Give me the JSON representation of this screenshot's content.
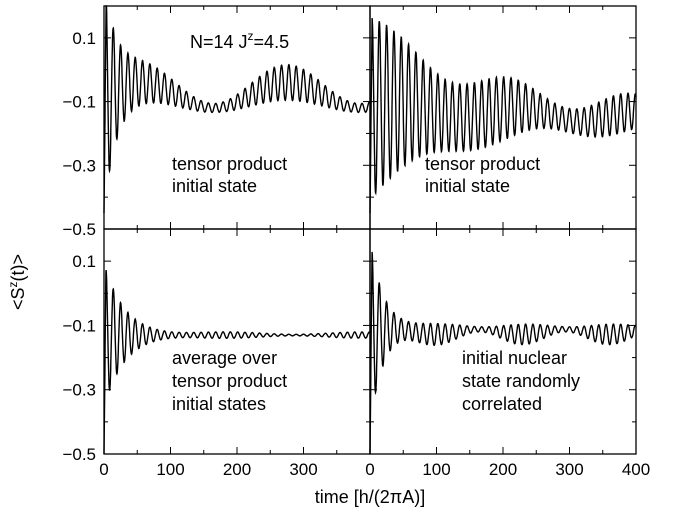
{
  "figure": {
    "ylabel": "<S^z(t)>",
    "ylabel_main": "<S",
    "ylabel_sup": "z",
    "ylabel_tail": "(t)>",
    "xlabel": "time [h/(2πA)]"
  },
  "chart_data": [
    {
      "type": "line",
      "panel": "top-left",
      "title_main": "N=14  J",
      "title_sup": "z",
      "title_tail": "=4.5",
      "annotation": [
        "tensor product",
        "initial state"
      ],
      "xlim": [
        0,
        400
      ],
      "ylim": [
        -0.5,
        0.2
      ],
      "yticks": [
        "0.1",
        "-0.1",
        "-0.3",
        "-0.5"
      ],
      "xticks": [],
      "signal": {
        "y0": -0.45,
        "peak": 0.17,
        "trough": -0.39,
        "center": -0.08,
        "settle_amp": 0.035,
        "period": 11,
        "decay": 18,
        "beat_amp": 0.04,
        "beat_period": 220,
        "drift": 0.0
      }
    },
    {
      "type": "line",
      "panel": "top-right",
      "annotation": [
        "tensor product",
        "initial state"
      ],
      "xlim": [
        0,
        400
      ],
      "ylim": [
        -0.5,
        0.2
      ],
      "yticks": [],
      "xticks": [],
      "signal": {
        "y0": -0.45,
        "peak": 0.12,
        "trough": -0.35,
        "center": -0.12,
        "settle_amp": 0.03,
        "period": 11,
        "decay": 130,
        "beat_amp": 0.02,
        "beat_period": 180,
        "drift": -0.03
      }
    },
    {
      "type": "line",
      "panel": "bottom-left",
      "annotation": [
        "average over",
        "tensor product",
        "initial states"
      ],
      "xlim": [
        0,
        400
      ],
      "ylim": [
        -0.5,
        0.2
      ],
      "yticks": [
        "0.1",
        "-0.1",
        "-0.3",
        "-0.5"
      ],
      "xticks": [
        "0",
        "100",
        "200",
        "300"
      ],
      "signal": {
        "y0": -0.5,
        "peak": 0.09,
        "trough": -0.3,
        "center": -0.13,
        "settle_amp": 0.006,
        "period": 11,
        "decay": 30,
        "beat_amp": 0.0,
        "beat_period": 200,
        "drift": 0.0
      }
    },
    {
      "type": "line",
      "panel": "bottom-right",
      "annotation": [
        "initial nuclear",
        "state randomly",
        "correlated"
      ],
      "xlim": [
        0,
        400
      ],
      "ylim": [
        -0.5,
        0.2
      ],
      "yticks": [],
      "xticks": [
        "0",
        "100",
        "200",
        "300",
        "400"
      ],
      "signal": {
        "y0": -0.5,
        "peak": 0.11,
        "trough": -0.35,
        "center": -0.12,
        "settle_amp": 0.02,
        "period": 11,
        "decay": 20,
        "beat_amp": 0.008,
        "beat_period": 130,
        "drift": 0.0
      }
    }
  ]
}
